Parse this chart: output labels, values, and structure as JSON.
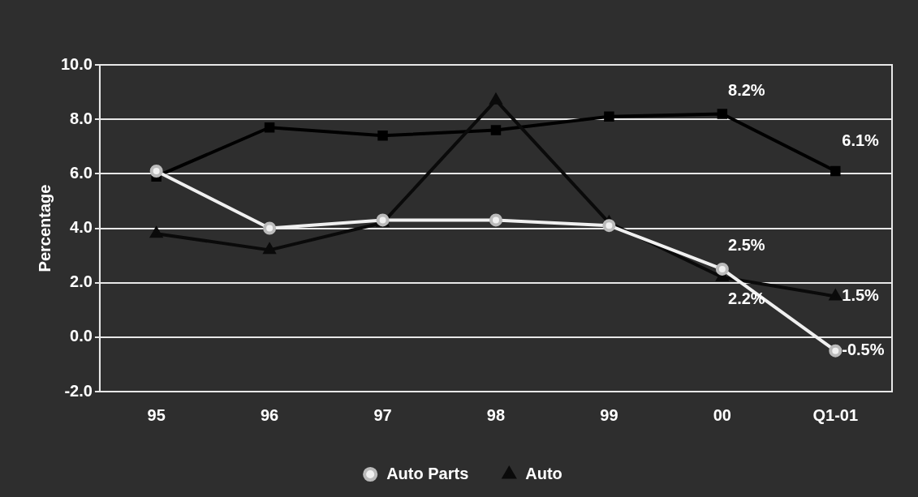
{
  "chart_data": {
    "type": "line",
    "ylabel": "Percentage",
    "categories": [
      "95",
      "96",
      "97",
      "98",
      "99",
      "00",
      "Q1-01"
    ],
    "series": [
      {
        "name": null,
        "color": "#000000",
        "marker": "square",
        "values": [
          5.9,
          7.7,
          7.4,
          7.6,
          8.1,
          8.2,
          6.1
        ],
        "value_labels": [
          null,
          null,
          null,
          null,
          null,
          "8.2%",
          "6.1%"
        ]
      },
      {
        "name": "Auto",
        "color": "#0a0a0a",
        "marker": "triangle",
        "values": [
          3.8,
          3.2,
          4.2,
          8.7,
          4.2,
          2.2,
          1.5
        ],
        "value_labels": [
          null,
          null,
          null,
          null,
          null,
          "2.2%",
          "1.5%"
        ]
      },
      {
        "name": "Auto Parts",
        "color": "#f0f0f0",
        "marker": "circle",
        "values": [
          6.1,
          4.0,
          4.3,
          4.3,
          4.1,
          2.5,
          -0.5
        ],
        "value_labels": [
          null,
          null,
          null,
          null,
          null,
          "2.5%",
          "-0.5%"
        ]
      }
    ],
    "ylim": [
      -2,
      10
    ],
    "yticks": [
      {
        "value": -2,
        "label": "-2.0"
      },
      {
        "value": 0,
        "label": "0.0"
      },
      {
        "value": 2,
        "label": "2.0"
      },
      {
        "value": 4,
        "label": "4.0"
      },
      {
        "value": 6,
        "label": "6.0"
      },
      {
        "value": 8,
        "label": "8.0"
      },
      {
        "value": 10,
        "label": "10.0"
      }
    ],
    "grid": "y",
    "legend": "bottom",
    "line_style": "solid"
  }
}
